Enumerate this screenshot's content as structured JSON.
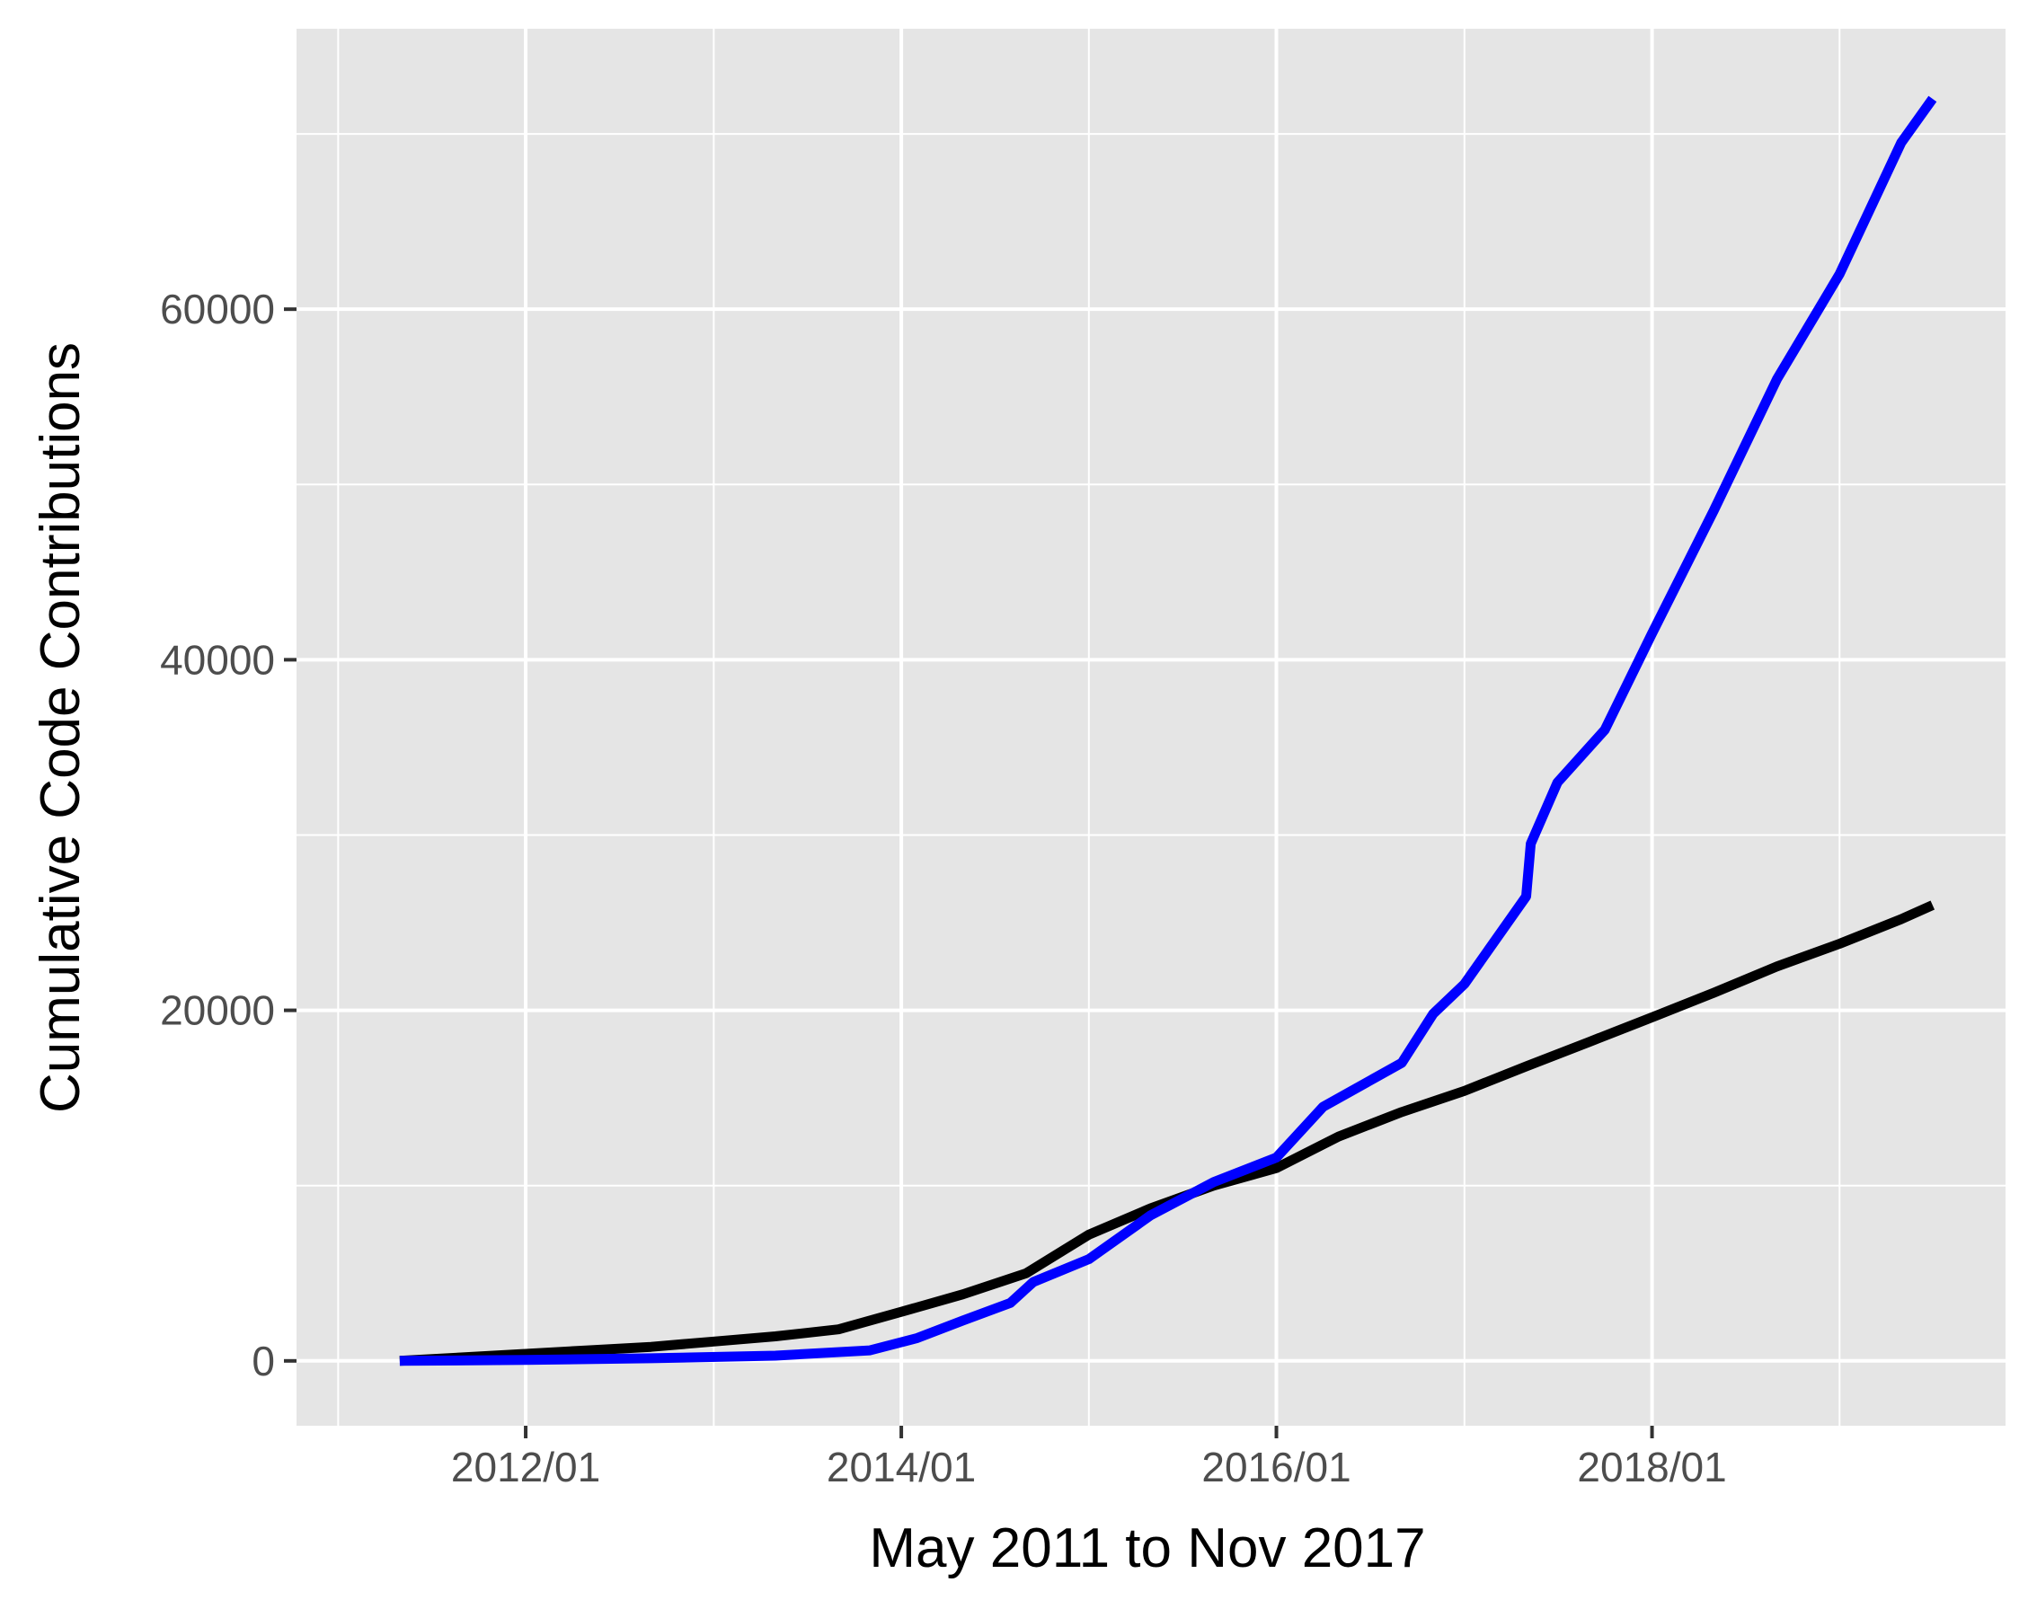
{
  "chart_data": {
    "type": "line",
    "title": "",
    "xlabel": "May 2011 to Nov 2017",
    "ylabel": "Cumulative Code Contributions",
    "x_tick_labels": [
      "2012/01",
      "2014/01",
      "2016/01",
      "2018/01"
    ],
    "x_ticks": [
      "2012-01-01",
      "2014-01-01",
      "2016-01-01",
      "2018-01-01"
    ],
    "x_minor_ticks": [
      "2011-01-01",
      "2013-01-01",
      "2015-01-01",
      "2017-01-01",
      "2019-01-01"
    ],
    "y_tick_labels": [
      "0",
      "20000",
      "40000",
      "60000"
    ],
    "y_ticks": [
      0,
      20000,
      40000,
      60000
    ],
    "xlim": [
      "2010-10-12",
      "2019-11-20"
    ],
    "ylim": [
      -3700,
      76000
    ],
    "grid": true,
    "legend": "none",
    "background_color": "#e5e5e5",
    "grid_color": "#ffffff",
    "series": [
      {
        "color": "#000000",
        "points": [
          [
            "2011-05-01",
            0
          ],
          [
            "2011-09-01",
            200
          ],
          [
            "2012-01-01",
            400
          ],
          [
            "2012-05-01",
            600
          ],
          [
            "2012-09-01",
            800
          ],
          [
            "2013-01-01",
            1100
          ],
          [
            "2013-05-01",
            1400
          ],
          [
            "2013-09-01",
            1800
          ],
          [
            "2014-01-01",
            2800
          ],
          [
            "2014-05-01",
            3800
          ],
          [
            "2014-09-01",
            5000
          ],
          [
            "2015-01-01",
            7200
          ],
          [
            "2015-05-01",
            8700
          ],
          [
            "2015-09-01",
            10000
          ],
          [
            "2016-01-01",
            11000
          ],
          [
            "2016-05-01",
            12800
          ],
          [
            "2016-09-01",
            14200
          ],
          [
            "2017-01-01",
            15400
          ],
          [
            "2017-05-01",
            16800
          ],
          [
            "2017-09-01",
            18200
          ],
          [
            "2018-01-01",
            19600
          ],
          [
            "2018-05-01",
            21000
          ],
          [
            "2018-09-01",
            22500
          ],
          [
            "2019-01-01",
            23800
          ],
          [
            "2019-05-01",
            25200
          ],
          [
            "2019-07-01",
            26000
          ]
        ]
      },
      {
        "color": "#0000ff",
        "points": [
          [
            "2011-05-01",
            0
          ],
          [
            "2012-01-01",
            50
          ],
          [
            "2012-09-01",
            150
          ],
          [
            "2013-05-01",
            300
          ],
          [
            "2013-11-01",
            600
          ],
          [
            "2014-02-01",
            1300
          ],
          [
            "2014-05-01",
            2300
          ],
          [
            "2014-08-01",
            3300
          ],
          [
            "2014-09-15",
            4500
          ],
          [
            "2015-01-01",
            5800
          ],
          [
            "2015-05-01",
            8300
          ],
          [
            "2015-09-01",
            10200
          ],
          [
            "2016-01-01",
            11600
          ],
          [
            "2016-04-01",
            14500
          ],
          [
            "2016-09-01",
            17000
          ],
          [
            "2016-11-01",
            19800
          ],
          [
            "2017-01-01",
            21500
          ],
          [
            "2017-05-01",
            26500
          ],
          [
            "2017-05-10",
            29500
          ],
          [
            "2017-07-01",
            33000
          ],
          [
            "2017-10-01",
            36000
          ],
          [
            "2018-01-01",
            41500
          ],
          [
            "2018-05-01",
            48500
          ],
          [
            "2018-09-01",
            56000
          ],
          [
            "2019-01-01",
            62000
          ],
          [
            "2019-05-01",
            69500
          ],
          [
            "2019-07-01",
            72000
          ]
        ]
      }
    ]
  }
}
